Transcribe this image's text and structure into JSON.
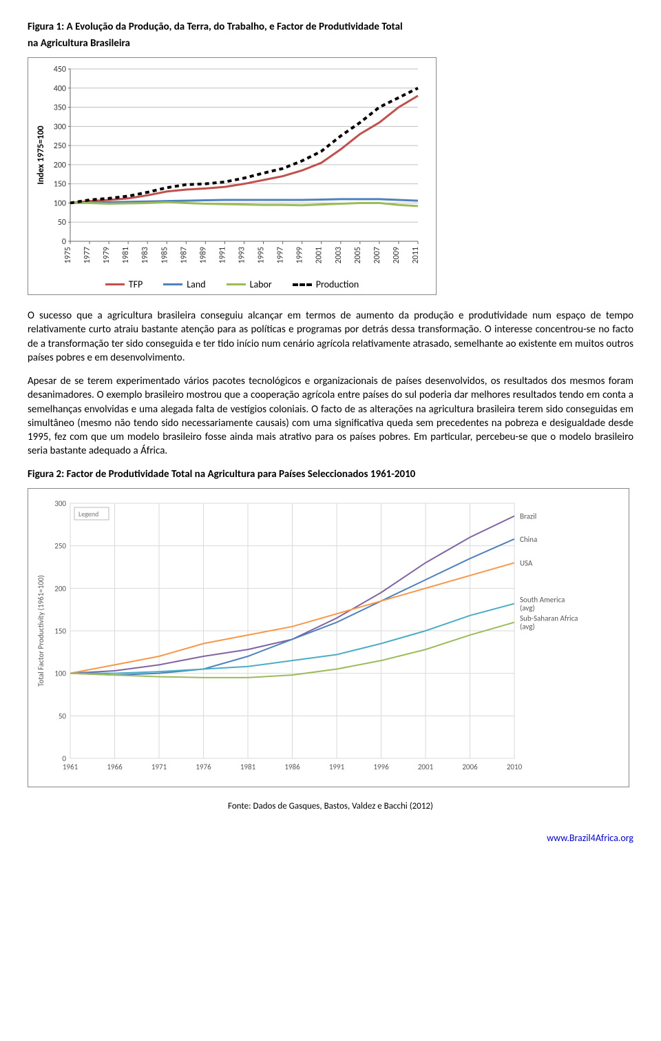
{
  "figure1": {
    "title_line1": "Figura 1: A Evolução da Produção, da Terra, do Trabalho, e Factor de Produtividade Total",
    "title_line2": "na Agricultura Brasileira",
    "type": "line",
    "y_axis_label": "Index 1975=100",
    "ylim": [
      0,
      450
    ],
    "ytick_step": 50,
    "x_years": [
      1975,
      1977,
      1979,
      1981,
      1983,
      1985,
      1987,
      1989,
      1991,
      1993,
      1995,
      1997,
      1999,
      2001,
      2003,
      2005,
      2007,
      2009,
      2011
    ],
    "series": {
      "tfp": {
        "label": "TFP",
        "color": "#c0504d",
        "width": 3,
        "dash": "none",
        "values": [
          100,
          105,
          108,
          112,
          120,
          130,
          135,
          138,
          142,
          150,
          160,
          170,
          185,
          205,
          240,
          280,
          310,
          350,
          380
        ]
      },
      "land": {
        "label": "Land",
        "color": "#4f81bd",
        "width": 3,
        "dash": "none",
        "values": [
          100,
          101,
          102,
          103,
          104,
          105,
          106,
          107,
          108,
          108,
          108,
          108,
          108,
          109,
          110,
          110,
          110,
          108,
          106
        ]
      },
      "labor": {
        "label": "Labor",
        "color": "#9bbb59",
        "width": 3,
        "dash": "none",
        "values": [
          100,
          100,
          98,
          99,
          100,
          102,
          100,
          98,
          97,
          96,
          95,
          95,
          94,
          96,
          98,
          100,
          100,
          95,
          92
        ]
      },
      "production": {
        "label": "Production",
        "color": "#000000",
        "width": 4,
        "dash": "6,5",
        "values": [
          100,
          108,
          112,
          118,
          128,
          140,
          148,
          150,
          155,
          165,
          178,
          190,
          210,
          235,
          275,
          310,
          350,
          375,
          400
        ]
      }
    },
    "background_color": "#ffffff",
    "grid_color": "#bfbfbf",
    "tick_font_size": 12,
    "axis_font_size": 13
  },
  "para1": "O sucesso que a agricultura brasileira conseguiu alcançar em termos de aumento da produção e produtividade num espaço de tempo relativamente curto atraiu bastante atenção para as políticas e programas por detrás dessa transformação. O interesse concentrou-se no facto de a transformação ter sido conseguida e ter tido início num cenário agrícola relativamente atrasado, semelhante ao existente em muitos outros países pobres e em desenvolvimento.",
  "para2": "Apesar de se terem experimentado vários pacotes tecnológicos e organizacionais de países desenvolvidos, os resultados dos mesmos foram desanimadores. O exemplo brasileiro mostrou que a cooperação agrícola entre países do sul poderia dar melhores resultados tendo em conta a semelhanças envolvidas e uma alegada falta de vestígios coloniais. O facto de as alterações na agricultura brasileira terem sido conseguidas em simultâneo (mesmo não tendo sido necessariamente causais) com uma significativa queda sem precedentes na pobreza e desigualdade desde 1995, fez com que um modelo brasileiro fosse ainda mais atrativo para os países pobres. Em particular, percebeu-se que o modelo brasileiro seria bastante adequado a África.",
  "figure2": {
    "title": "Figura 2: Factor de Produtividade Total na Agricultura para Países Seleccionados 1961-2010",
    "type": "line",
    "y_axis_label": "Total Factor Productivity (1961=100)",
    "ylim": [
      0,
      300
    ],
    "ytick_step": 50,
    "x_years": [
      1961,
      1966,
      1971,
      1976,
      1981,
      1986,
      1991,
      1996,
      2001,
      2006,
      2010
    ],
    "legend_label": "Legend",
    "series": {
      "brazil": {
        "label": "Brazil",
        "color": "#8064a2",
        "width": 2,
        "values": [
          100,
          103,
          110,
          120,
          128,
          140,
          165,
          195,
          230,
          260,
          285
        ]
      },
      "china": {
        "label": "China",
        "color": "#4f81bd",
        "width": 2,
        "values": [
          100,
          98,
          100,
          105,
          120,
          140,
          160,
          185,
          210,
          235,
          258
        ]
      },
      "usa": {
        "label": "USA",
        "color": "#f79646",
        "width": 2,
        "values": [
          100,
          110,
          120,
          135,
          145,
          155,
          170,
          185,
          200,
          215,
          230
        ]
      },
      "south_america": {
        "label": "South America (avg)",
        "color": "#4bacc6",
        "width": 2,
        "values": [
          100,
          100,
          102,
          105,
          108,
          115,
          122,
          135,
          150,
          168,
          182
        ]
      },
      "ssa": {
        "label": "Sub-Saharan Africa (avg)",
        "color": "#9bbb59",
        "width": 2,
        "values": [
          100,
          98,
          96,
          95,
          95,
          98,
          105,
          115,
          128,
          145,
          160
        ]
      }
    },
    "background_color": "#ffffff",
    "grid_color": "#d9d9d9",
    "tick_font_size": 11,
    "axis_font_size": 11
  },
  "source_text": "Fonte: Dados de Gasques, Bastos, Valdez e Bacchi (2012)",
  "footer_url": "www.Brazil4Africa.org"
}
